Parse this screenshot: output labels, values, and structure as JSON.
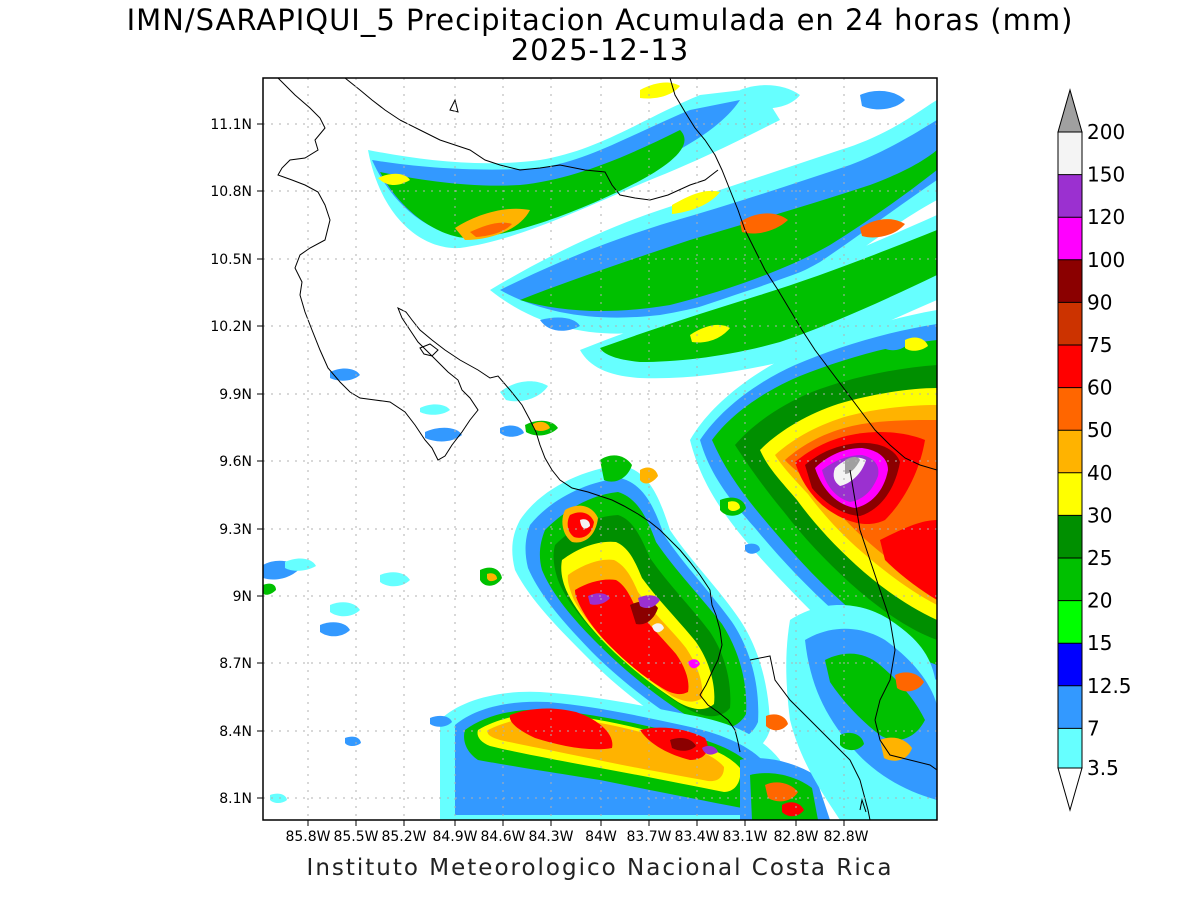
{
  "title": {
    "line1": "IMN/SARAPIQUI_5 Precipitacion Acumulada en 24 horas (mm)",
    "line2": "2025-12-13"
  },
  "footer": "Instituto Meteorologico Nacional Costa Rica",
  "map": {
    "lat_labels": [
      "11.1N",
      "10.8N",
      "10.5N",
      "10.2N",
      "9.9N",
      "9.6N",
      "9.3N",
      "9N",
      "8.7N",
      "8.4N",
      "8.1N"
    ],
    "lon_labels": [
      "85.8W",
      "85.5W",
      "85.2W",
      "84.9W",
      "84.6W",
      "84.3W",
      "84W",
      "83.7W",
      "83.4W",
      "83.1W",
      "82.8W"
    ]
  },
  "colorbar": {
    "labels": [
      "200",
      "150",
      "120",
      "100",
      "90",
      "75",
      "60",
      "50",
      "40",
      "30",
      "25",
      "20",
      "15",
      "12.5",
      "7",
      "3.5"
    ],
    "colors": [
      "#f4f4f4",
      "#9b30d0",
      "#ff00ff",
      "#8b0000",
      "#cc3300",
      "#ff0000",
      "#ff6600",
      "#ffb300",
      "#ffff00",
      "#008f00",
      "#00c000",
      "#00ff00",
      "#0000ff",
      "#3399ff",
      "#66ffff"
    ],
    "over_color": "#a0a0a0"
  },
  "precip_colors": {
    "c35": "#66ffff",
    "c7": "#3399ff",
    "c125": "#0000ff",
    "c15": "#00ff00",
    "c20": "#00c000",
    "c25": "#008f00",
    "c30": "#ffff00",
    "c40": "#ffb300",
    "c50": "#ff6600",
    "c60": "#ff0000",
    "c90": "#8b0000",
    "c120": "#ff00ff",
    "c150": "#9b30d0",
    "c200": "#f4f4f4"
  }
}
